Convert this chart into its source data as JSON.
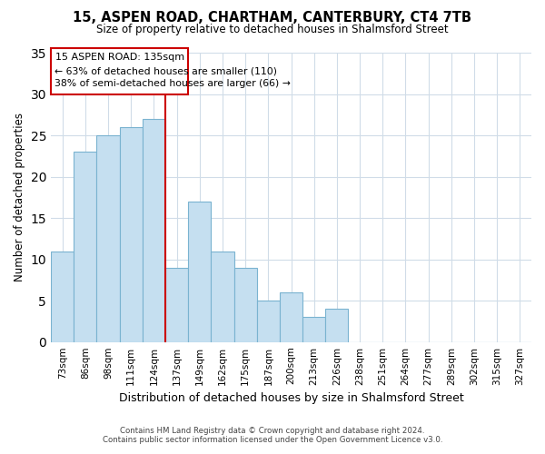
{
  "title": "15, ASPEN ROAD, CHARTHAM, CANTERBURY, CT4 7TB",
  "subtitle": "Size of property relative to detached houses in Shalmsford Street",
  "xlabel": "Distribution of detached houses by size in Shalmsford Street",
  "ylabel": "Number of detached properties",
  "bar_labels": [
    "73sqm",
    "86sqm",
    "98sqm",
    "111sqm",
    "124sqm",
    "137sqm",
    "149sqm",
    "162sqm",
    "175sqm",
    "187sqm",
    "200sqm",
    "213sqm",
    "226sqm",
    "238sqm",
    "251sqm",
    "264sqm",
    "277sqm",
    "289sqm",
    "302sqm",
    "315sqm",
    "327sqm"
  ],
  "bar_values": [
    11,
    23,
    25,
    26,
    27,
    9,
    17,
    11,
    9,
    5,
    6,
    3,
    4,
    0,
    0,
    0,
    0,
    0,
    0,
    0,
    0
  ],
  "bar_color": "#c5dff0",
  "bar_edge_color": "#7ab3d0",
  "vline_color": "#cc0000",
  "annotation_title": "15 ASPEN ROAD: 135sqm",
  "annotation_line1": "← 63% of detached houses are smaller (110)",
  "annotation_line2": "38% of semi-detached houses are larger (66) →",
  "annotation_box_color": "#cc0000",
  "ylim": [
    0,
    35
  ],
  "yticks": [
    0,
    5,
    10,
    15,
    20,
    25,
    30,
    35
  ],
  "footnote1": "Contains HM Land Registry data © Crown copyright and database right 2024.",
  "footnote2": "Contains public sector information licensed under the Open Government Licence v3.0.",
  "bg_color": "#ffffff",
  "grid_color": "#d0dce8"
}
